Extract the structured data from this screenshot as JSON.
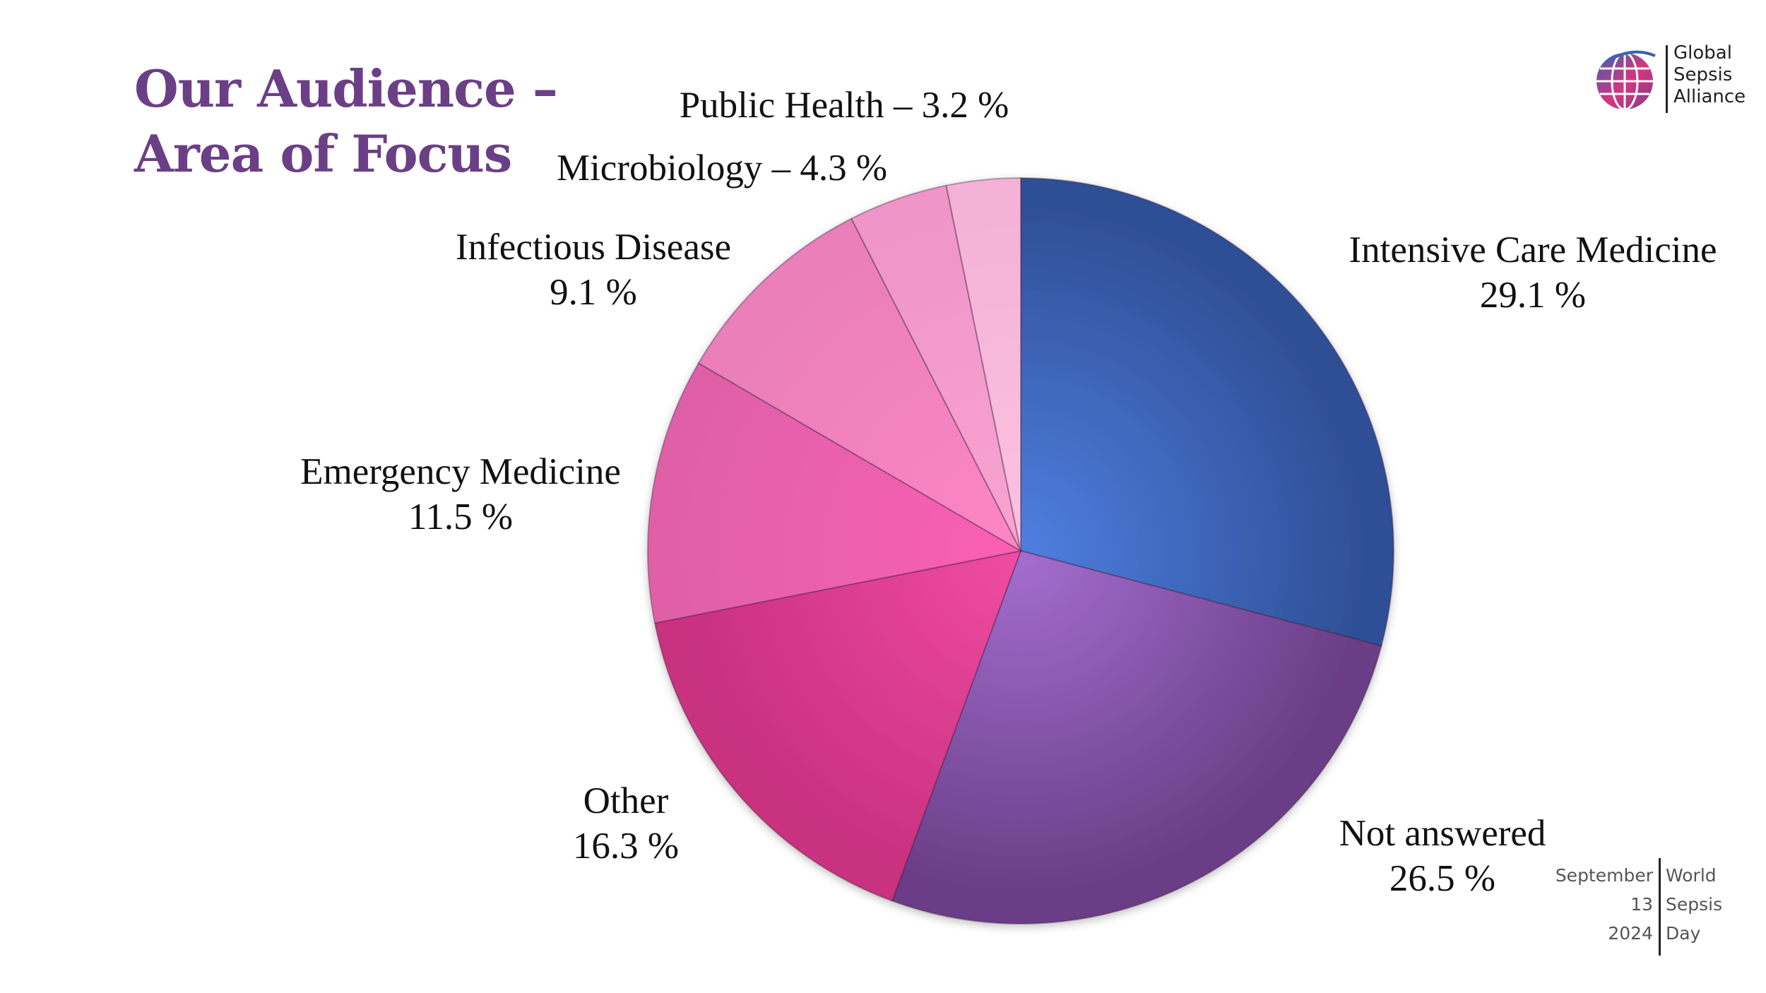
{
  "slide": {
    "title_line1": "Our Audience –",
    "title_line2": "Area of Focus"
  },
  "chart_data": {
    "type": "pie",
    "title": "",
    "slices": [
      {
        "label": "Intensive Care Medicine",
        "value": 29.1,
        "value_label": "29.1 %",
        "color_light": "#4f7fe0",
        "color_dark": "#2f4f96"
      },
      {
        "label": "Not answered",
        "value": 26.5,
        "value_label": "26.5 %",
        "color_light": "#a46ed0",
        "color_dark": "#6a3e86"
      },
      {
        "label": "Other",
        "value": 16.3,
        "value_label": "16.3 %",
        "color_light": "#f04ca2",
        "color_dark": "#c8307f"
      },
      {
        "label": "Emergency Medicine",
        "value": 11.5,
        "value_label": "11.5 %",
        "color_light": "#fb5fb4",
        "color_dark": "#e060a8"
      },
      {
        "label": "Infectious Disease",
        "value": 9.1,
        "value_label": "9.1 %",
        "color_light": "#fd86c6",
        "color_dark": "#ea7fba"
      },
      {
        "label": "Microbiology",
        "value": 4.3,
        "value_label": "4.3 %",
        "color_light": "#f9a4d2",
        "color_dark": "#ef95c8"
      },
      {
        "label": "Public Health",
        "value": 3.2,
        "value_label": "3.2 %",
        "color_light": "#fcc2e2",
        "color_dark": "#f3b2d6"
      }
    ],
    "start_angle_deg": 0,
    "direction": "clockwise"
  },
  "labels": {
    "intensive_care": {
      "name": "Intensive Care Medicine",
      "pct": "29.1 %"
    },
    "not_answered": {
      "name": "Not answered",
      "pct": "26.5 %"
    },
    "other": {
      "name": "Other",
      "pct": "16.3 %"
    },
    "emergency": {
      "name": "Emergency Medicine",
      "pct": "11.5 %"
    },
    "infectious": {
      "name": "Infectious Disease",
      "pct": "9.1 %"
    },
    "microbiology": "Microbiology – 4.3 %",
    "public_health": "Public Health – 3.2 %"
  },
  "logo": {
    "line1": "Global",
    "line2": "Sepsis",
    "line3": "Alliance",
    "colors": {
      "blue": "#3a63b0",
      "pink": "#d8337f",
      "purple": "#7a3f8c"
    }
  },
  "event": {
    "month": "September",
    "day": "13",
    "year": "2024",
    "word1": "World",
    "word2": "Sepsis",
    "word3": "Day"
  }
}
